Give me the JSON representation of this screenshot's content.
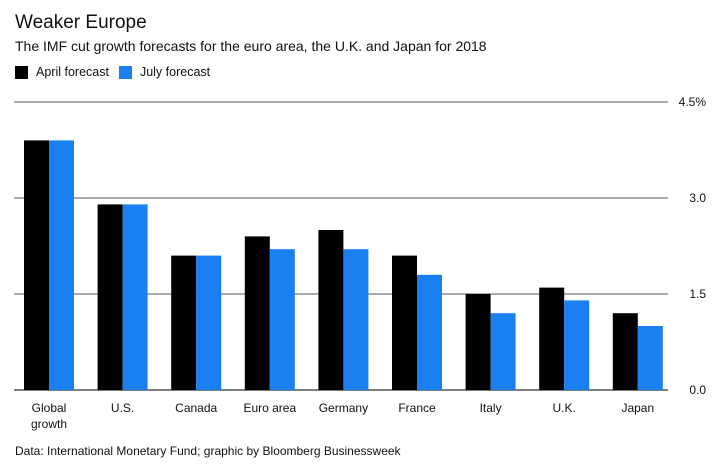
{
  "chart_data": {
    "type": "bar",
    "title": "Weaker Europe",
    "subtitle": "The IMF cut growth forecasts for the euro area, the U.K. and Japan for 2018",
    "categories": [
      "Global growth",
      "U.S.",
      "Canada",
      "Euro area",
      "Germany",
      "France",
      "Italy",
      "U.K.",
      "Japan"
    ],
    "series": [
      {
        "name": "April forecast",
        "color": "#000000",
        "values": [
          3.9,
          2.9,
          2.1,
          2.4,
          2.5,
          2.1,
          1.5,
          1.6,
          1.2
        ]
      },
      {
        "name": "July forecast",
        "color": "#1a80f2",
        "values": [
          3.9,
          2.9,
          2.1,
          2.2,
          2.2,
          1.8,
          1.2,
          1.4,
          1.0
        ]
      }
    ],
    "yticks": [
      "0.0",
      "1.5",
      "3.0",
      "4.5%"
    ],
    "ytick_values": [
      0,
      1.5,
      3.0,
      4.5
    ],
    "ylim": [
      0,
      4.5
    ],
    "grid": true,
    "legend": "top-left",
    "source": "Data: International Monetary Fund; graphic by Bloomberg Businessweek"
  }
}
